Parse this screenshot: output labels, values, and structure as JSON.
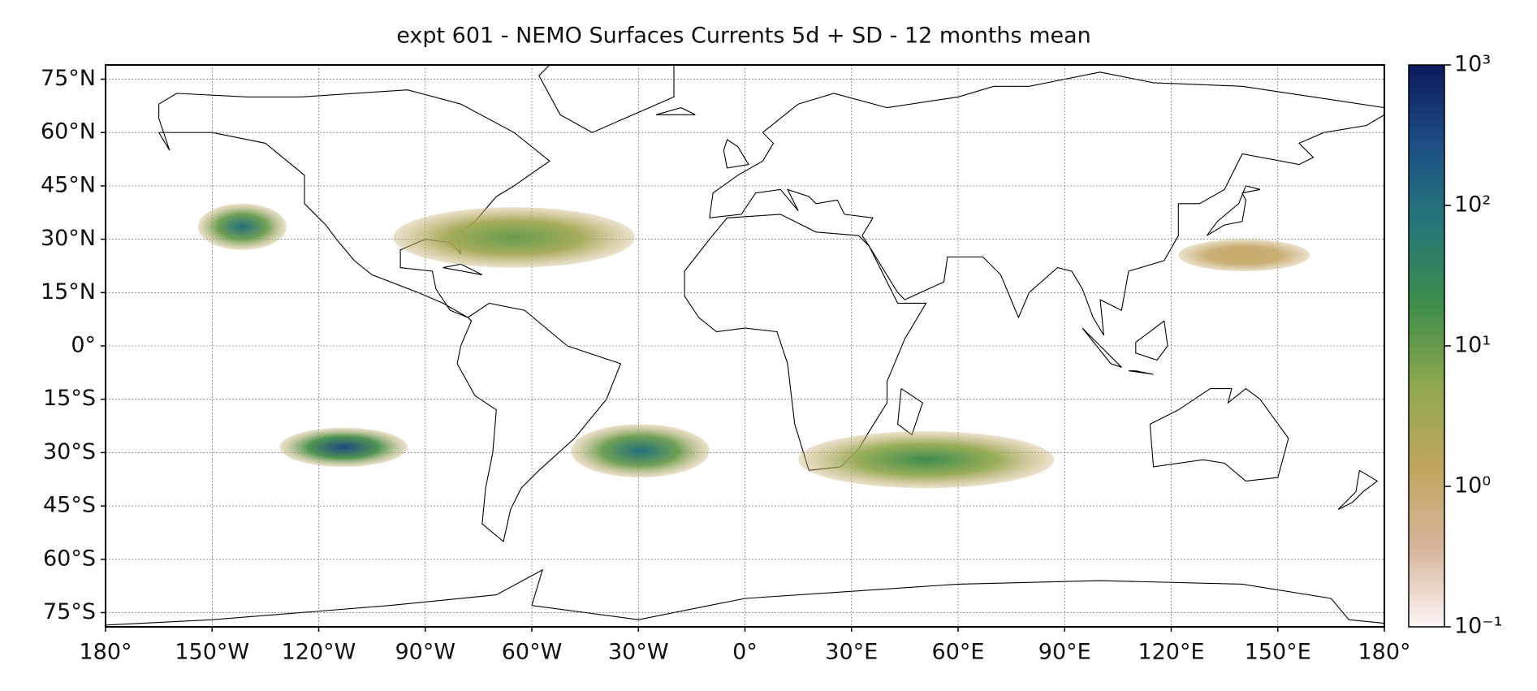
{
  "chart_data": {
    "type": "map",
    "title": "expt 601 - NEMO Surfaces Currents 5d + SD - 12 months mean",
    "xlim": [
      -180,
      180
    ],
    "ylim": [
      -79,
      79
    ],
    "xticks": [
      {
        "value": -180,
        "label": "180°"
      },
      {
        "value": -150,
        "label": "150°W"
      },
      {
        "value": -120,
        "label": "120°W"
      },
      {
        "value": -90,
        "label": "90°W"
      },
      {
        "value": -60,
        "label": "60°W"
      },
      {
        "value": -30,
        "label": "30°W"
      },
      {
        "value": 0,
        "label": "0°"
      },
      {
        "value": 30,
        "label": "30°E"
      },
      {
        "value": 60,
        "label": "60°E"
      },
      {
        "value": 90,
        "label": "90°E"
      },
      {
        "value": 120,
        "label": "120°E"
      },
      {
        "value": 150,
        "label": "150°E"
      },
      {
        "value": 180,
        "label": "180°"
      }
    ],
    "yticks": [
      {
        "value": 75,
        "label": "75°N"
      },
      {
        "value": 60,
        "label": "60°N"
      },
      {
        "value": 45,
        "label": "45°N"
      },
      {
        "value": 30,
        "label": "30°N"
      },
      {
        "value": 15,
        "label": "15°N"
      },
      {
        "value": 0,
        "label": "0°"
      },
      {
        "value": -15,
        "label": "15°S"
      },
      {
        "value": -30,
        "label": "30°S"
      },
      {
        "value": -45,
        "label": "45°S"
      },
      {
        "value": -60,
        "label": "60°S"
      },
      {
        "value": -75,
        "label": "75°S"
      }
    ],
    "grid": true,
    "patches": [
      {
        "lon": [
          -154,
          -129
        ],
        "lat": [
          27,
          40
        ],
        "value": 100
      },
      {
        "lon": [
          -99,
          -31
        ],
        "lat": [
          22,
          39
        ],
        "value": 10
      },
      {
        "lon": [
          -131,
          -95
        ],
        "lat": [
          -34,
          -23
        ],
        "value": 300
      },
      {
        "lon": [
          -49,
          -10
        ],
        "lat": [
          -37,
          -22
        ],
        "value": 100
      },
      {
        "lon": [
          15,
          87
        ],
        "lat": [
          -40,
          -24
        ],
        "value": 20
      },
      {
        "lon": [
          122,
          159
        ],
        "lat": [
          21,
          30
        ],
        "value": 1
      }
    ],
    "colorbar": {
      "scale": "log",
      "lim": [
        0.1,
        1000
      ],
      "ticks": [
        {
          "value": 0.1,
          "label": "10⁻¹"
        },
        {
          "value": 1,
          "label": "10⁰"
        },
        {
          "value": 10,
          "label": "10¹"
        },
        {
          "value": 100,
          "label": "10²"
        },
        {
          "value": 1000,
          "label": "10³"
        }
      ],
      "colormap": [
        "#fdf5f4",
        "#d6b49a",
        "#bfa65d",
        "#8fa94f",
        "#3e8d4a",
        "#257878",
        "#1d4f86",
        "#0c1a5c"
      ]
    }
  }
}
